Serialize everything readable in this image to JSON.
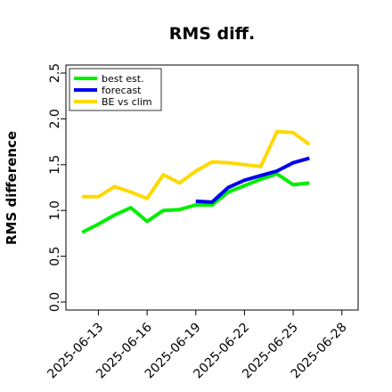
{
  "chart_data": {
    "type": "line",
    "title": "RMS diff.",
    "xlabel": "",
    "ylabel": "RMS difference",
    "ylim": [
      0.0,
      2.5
    ],
    "yticks": [
      "0.0",
      "0.5",
      "1.0",
      "1.5",
      "2.0",
      "2.5"
    ],
    "xlim": [
      "2025-06-11",
      "2025-06-29"
    ],
    "xticks": [
      "2025-06-13",
      "2025-06-16",
      "2025-06-19",
      "2025-06-22",
      "2025-06-25",
      "2025-06-28"
    ],
    "highlight_tick": "2025-06-19",
    "grid": false,
    "legend_position": "top-left",
    "series": [
      {
        "name": "best est.",
        "color": "#00ee00",
        "x": [
          "2025-06-12",
          "2025-06-13",
          "2025-06-14",
          "2025-06-15",
          "2025-06-16",
          "2025-06-17",
          "2025-06-18",
          "2025-06-19",
          "2025-06-20",
          "2025-06-21",
          "2025-06-22",
          "2025-06-23",
          "2025-06-24",
          "2025-06-25",
          "2025-06-26"
        ],
        "y": [
          0.76,
          0.85,
          0.95,
          1.03,
          0.88,
          1.0,
          1.01,
          1.06,
          1.06,
          1.2,
          1.27,
          1.34,
          1.4,
          1.28,
          1.3
        ]
      },
      {
        "name": "forecast",
        "color": "#0000ee",
        "x": [
          "2025-06-19",
          "2025-06-20",
          "2025-06-21",
          "2025-06-22",
          "2025-06-23",
          "2025-06-24",
          "2025-06-25",
          "2025-06-26"
        ],
        "y": [
          1.1,
          1.09,
          1.25,
          1.33,
          1.38,
          1.43,
          1.52,
          1.57
        ]
      },
      {
        "name": "BE vs clim",
        "color": "#ffd800",
        "x": [
          "2025-06-12",
          "2025-06-13",
          "2025-06-14",
          "2025-06-15",
          "2025-06-16",
          "2025-06-17",
          "2025-06-18",
          "2025-06-19",
          "2025-06-20",
          "2025-06-21",
          "2025-06-22",
          "2025-06-23",
          "2025-06-24",
          "2025-06-25",
          "2025-06-26"
        ],
        "y": [
          1.15,
          1.15,
          1.26,
          1.2,
          1.13,
          1.39,
          1.3,
          1.43,
          1.53,
          1.52,
          1.5,
          1.48,
          1.86,
          1.85,
          1.72
        ]
      }
    ]
  }
}
